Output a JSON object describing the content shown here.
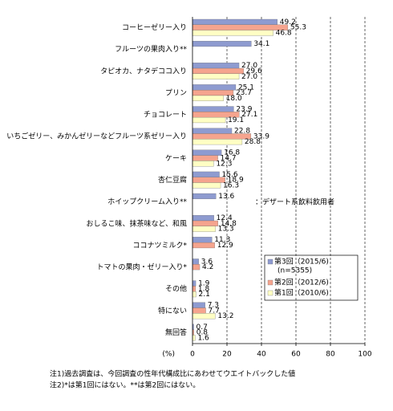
{
  "chart_data": {
    "type": "bar",
    "orientation": "horizontal",
    "categories": [
      "コーヒーゼリー入り",
      "フルーツの果肉入り**",
      "タピオカ、ナタデココ入り",
      "プリン",
      "チョコレート",
      "いちごゼリー、みかんゼリーなどフルーツ系ゼリー入り",
      "ケーキ",
      "杏仁豆腐",
      "ホイップクリーム入り**",
      "おしるこ味、抹茶味など、和風",
      "ココナツミルク*",
      "トマトの果肉・ゼリー入り*",
      "その他",
      "特にない",
      "無回答"
    ],
    "series": [
      {
        "name": "第3回（2015/6)",
        "color": "#8e9bd0",
        "values": [
          49.2,
          34.1,
          27.0,
          25.1,
          23.9,
          22.8,
          16.8,
          15.6,
          13.6,
          12.4,
          11.3,
          3.6,
          1.9,
          7.3,
          0.7
        ],
        "value_labels": [
          "49.2",
          "34.1",
          "27.0",
          "25.1",
          "23.9",
          "22.8",
          "16.8",
          "15.6",
          "13.6",
          "12.4",
          "11.3",
          "3.6",
          "1.9",
          "7.3",
          "0.7"
        ]
      },
      {
        "name": "第2回（2012/6)",
        "color": "#f5a48e",
        "values": [
          55.3,
          null,
          29.6,
          23.7,
          27.1,
          33.9,
          14.7,
          18.9,
          null,
          14.8,
          12.9,
          4.2,
          1.8,
          7.7,
          0.8
        ],
        "value_labels": [
          "55.3",
          null,
          "29.6",
          "23.7",
          "27.1",
          "33.9",
          "14.7",
          "18.9",
          null,
          "14.8",
          "12.9",
          "4.2",
          "1.8",
          "7.7",
          "0.8"
        ]
      },
      {
        "name": "第1回（2010/6)",
        "color": "#ffffc4",
        "values": [
          46.8,
          null,
          27.0,
          18.0,
          19.1,
          28.8,
          12.3,
          16.3,
          null,
          13.3,
          null,
          null,
          2.1,
          13.2,
          1.6
        ],
        "value_labels": [
          "46.8",
          null,
          "27.0",
          "18.0",
          "19.1",
          "28.8",
          "12.3",
          "16.3",
          null,
          "13.3",
          null,
          null,
          "2.1",
          "13.2",
          "1.6"
        ]
      }
    ],
    "legend_note": "(n=5355)",
    "annotation": "：デザート系飲料飲用者",
    "x_unit_label": "(%)",
    "xlim": [
      0,
      100
    ],
    "xticks": [
      0,
      20,
      40,
      60,
      80,
      100
    ],
    "grid": true,
    "notes": [
      "注1)過去調査は、今回調査の性年代構成比にあわせてウエイトバックした値",
      "注2)*は第1回にはない。**は第2回にはない。"
    ]
  }
}
